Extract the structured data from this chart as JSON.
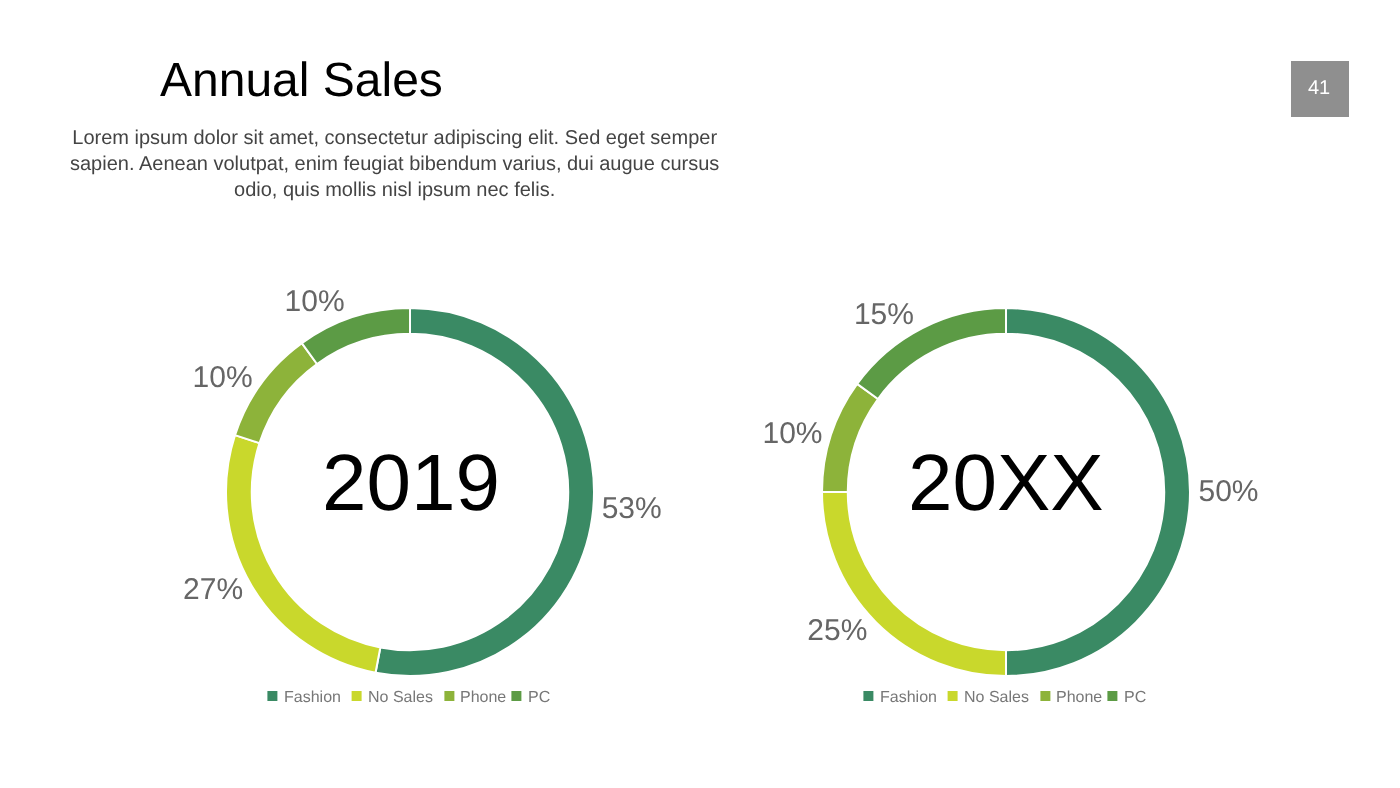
{
  "chart_data": [
    {
      "type": "donut",
      "title": "Annual Sales",
      "subtitle": "Lorem ipsum dolor sit amet, consectetur adipiscing elit. Sed eget semper sapien. Aenean volutpat, enim feugiat bibendum varius, dui augue cursus odio, quis mollis nisl ipsum nec felis.",
      "annotations": [
        "2019",
        "41"
      ],
      "categories": [
        "Fashion",
        "No Sales",
        "Phone",
        "PC"
      ],
      "values": [
        53,
        27,
        10,
        10
      ],
      "value_labels": [
        "53%",
        "27%",
        "10%",
        "10%"
      ],
      "colors": [
        "#3a8a64",
        "#c9d82c",
        "#8db33a",
        "#5c9b45"
      ],
      "legend": "bottom"
    },
    {
      "type": "donut",
      "annotations": [
        "20XX"
      ],
      "categories": [
        "Fashion",
        "No Sales",
        "Phone",
        "PC"
      ],
      "values": [
        50,
        25,
        10,
        15
      ],
      "value_labels": [
        "50%",
        "25%",
        "10%",
        "15%"
      ],
      "colors": [
        "#3a8a64",
        "#c9d82c",
        "#8db33a",
        "#5c9b45"
      ],
      "legend": "bottom"
    }
  ]
}
